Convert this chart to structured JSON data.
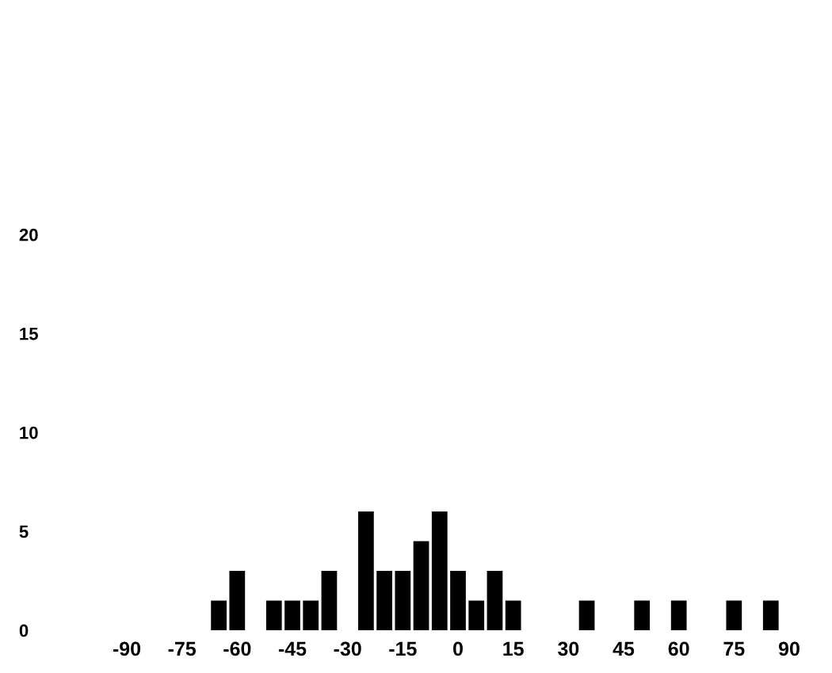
{
  "chart_data": {
    "type": "histogram",
    "bins": [
      -67.5,
      -62.5,
      -57.5,
      -52.5,
      -47.5,
      -42.5,
      -37.5,
      -32.5,
      -27.5,
      -22.5,
      -17.5,
      -12.5,
      -7.5,
      -2.5,
      2.5,
      7.5,
      12.5,
      17.5,
      22.5,
      27.5,
      32.5,
      37.5,
      42.5,
      47.5,
      52.5,
      57.5,
      62.5,
      67.5,
      72.5,
      77.5,
      82.5,
      87.5
    ],
    "values": [
      1.5,
      3,
      0,
      1.5,
      1.5,
      1.5,
      3,
      0,
      6,
      3,
      3,
      4.5,
      6,
      3,
      1.5,
      3,
      1.5,
      0,
      0,
      0,
      1.5,
      0,
      0,
      1.5,
      0,
      1.5,
      0,
      0,
      1.5,
      0,
      1.5
    ],
    "color": "#000000",
    "xlim": [
      -90,
      90
    ],
    "xticks": [
      -90,
      -75,
      -60,
      -45,
      -30,
      -15,
      0,
      15,
      30,
      45,
      60,
      75,
      90
    ],
    "ylim": [
      0,
      20
    ],
    "yticks": [
      0,
      5,
      10,
      15,
      20
    ],
    "grid": false
  }
}
